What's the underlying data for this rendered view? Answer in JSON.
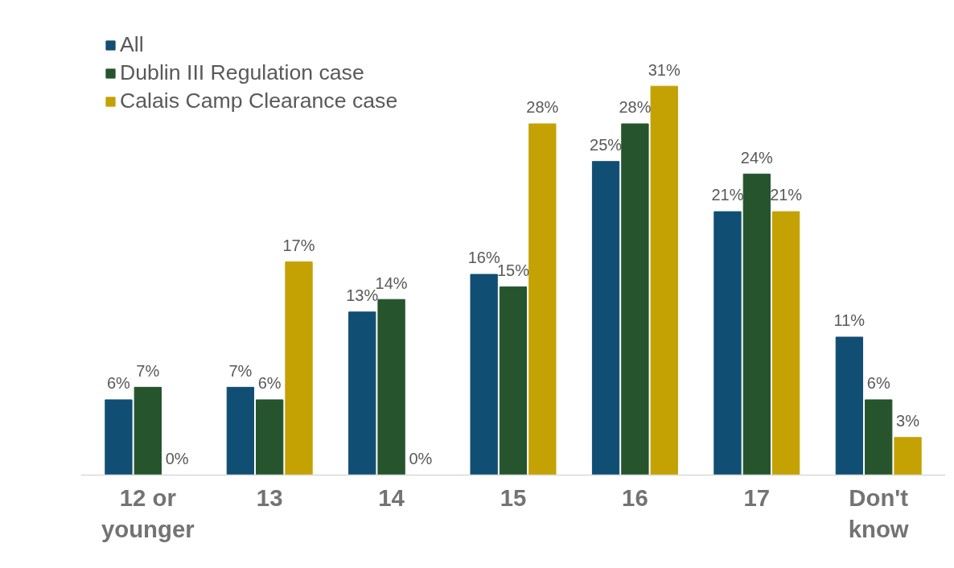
{
  "chart_data": {
    "type": "bar",
    "categories": [
      "12 or younger",
      "13",
      "14",
      "15",
      "16",
      "17",
      "Don't know"
    ],
    "series": [
      {
        "name": "All",
        "color": "#114e74",
        "values": [
          6,
          7,
          13,
          16,
          25,
          21,
          11
        ],
        "value_labels": [
          "6%",
          "7%",
          "13%",
          "16%",
          "25%",
          "21%",
          "11%"
        ]
      },
      {
        "name": "Dublin III Regulation case",
        "color": "#25542d",
        "values": [
          7,
          6,
          14,
          15,
          28,
          24,
          6
        ],
        "value_labels": [
          "7%",
          "6%",
          "14%",
          "15%",
          "28%",
          "24%",
          "6%"
        ]
      },
      {
        "name": "Calais Camp Clearance case",
        "color": "#c4a204",
        "values": [
          0,
          17,
          0,
          28,
          31,
          21,
          3
        ],
        "value_labels": [
          "0%",
          "17%",
          "0%",
          "28%",
          "31%",
          "21%",
          "3%"
        ]
      }
    ],
    "legend": "top left",
    "grid": false
  }
}
